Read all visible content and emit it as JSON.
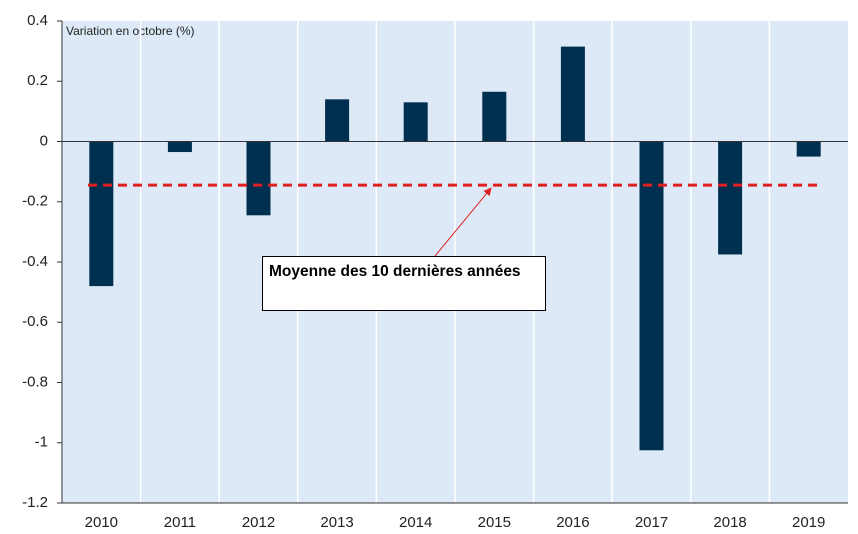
{
  "chart_data": {
    "type": "bar",
    "y_label": "Variation en octobre (%)",
    "categories": [
      "2010",
      "2011",
      "2012",
      "2013",
      "2014",
      "2015",
      "2016",
      "2017",
      "2018",
      "2019"
    ],
    "values": [
      -0.48,
      -0.035,
      -0.245,
      0.14,
      0.13,
      0.165,
      0.315,
      -1.025,
      -0.375,
      -0.05
    ],
    "color": "#00304f",
    "average": -0.145,
    "average_color": "#e02020",
    "annotation": "Moyenne des 10 dernières années",
    "ylim": [
      -1.2,
      0.4
    ],
    "yticks": [
      -1.2,
      -1,
      -0.8,
      -0.6,
      -0.4,
      -0.2,
      0,
      0.2,
      0.4
    ],
    "background": "#dde9f7"
  }
}
